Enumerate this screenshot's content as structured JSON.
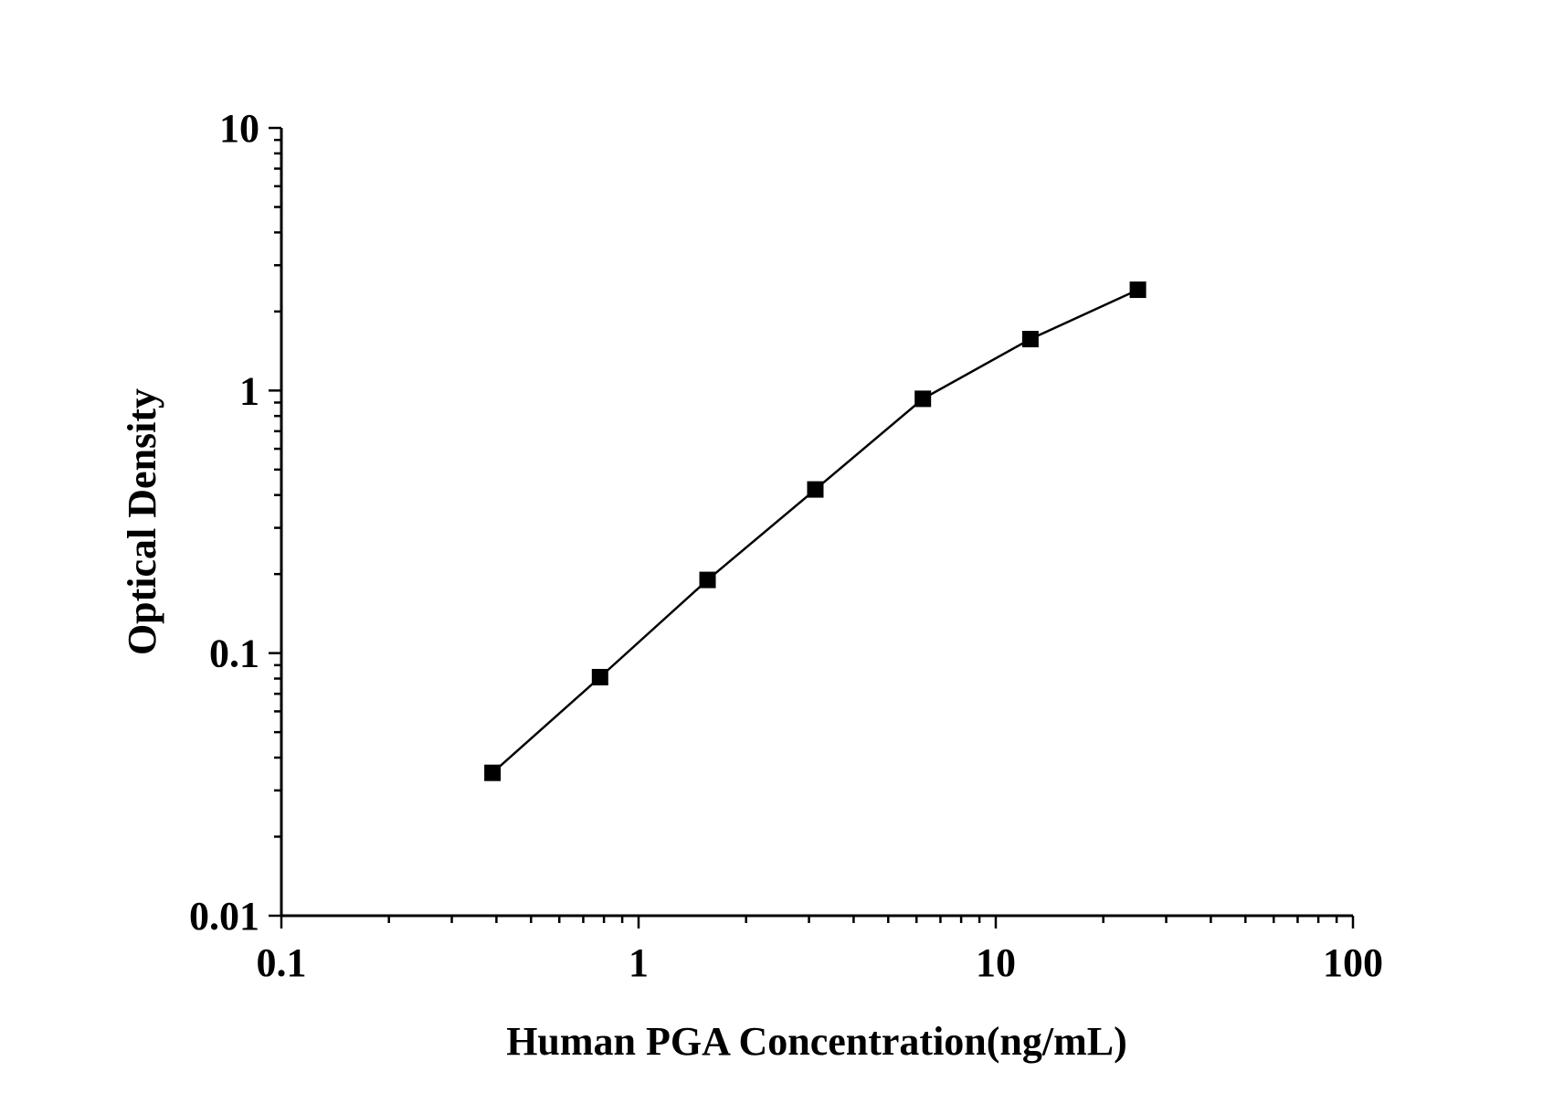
{
  "chart_data": {
    "type": "line",
    "title": "",
    "xlabel": "Human PGA Concentration(ng/mL)",
    "ylabel": "Optical Density",
    "xscale": "log",
    "yscale": "log",
    "xlim": [
      0.1,
      100
    ],
    "ylim": [
      0.01,
      10
    ],
    "xticks": [
      0.1,
      1,
      10,
      100
    ],
    "xtick_labels": [
      "0.1",
      "1",
      "10",
      "100"
    ],
    "yticks": [
      0.01,
      0.1,
      1,
      10
    ],
    "ytick_labels": [
      "0.01",
      "0.1",
      "1",
      "10"
    ],
    "grid": false,
    "marker": "square",
    "color": "#000000",
    "series": [
      {
        "x": [
          0.39,
          0.78,
          1.56,
          3.125,
          6.25,
          12.5,
          25
        ],
        "y": [
          0.035,
          0.081,
          0.19,
          0.42,
          0.93,
          1.57,
          2.42
        ]
      }
    ]
  }
}
